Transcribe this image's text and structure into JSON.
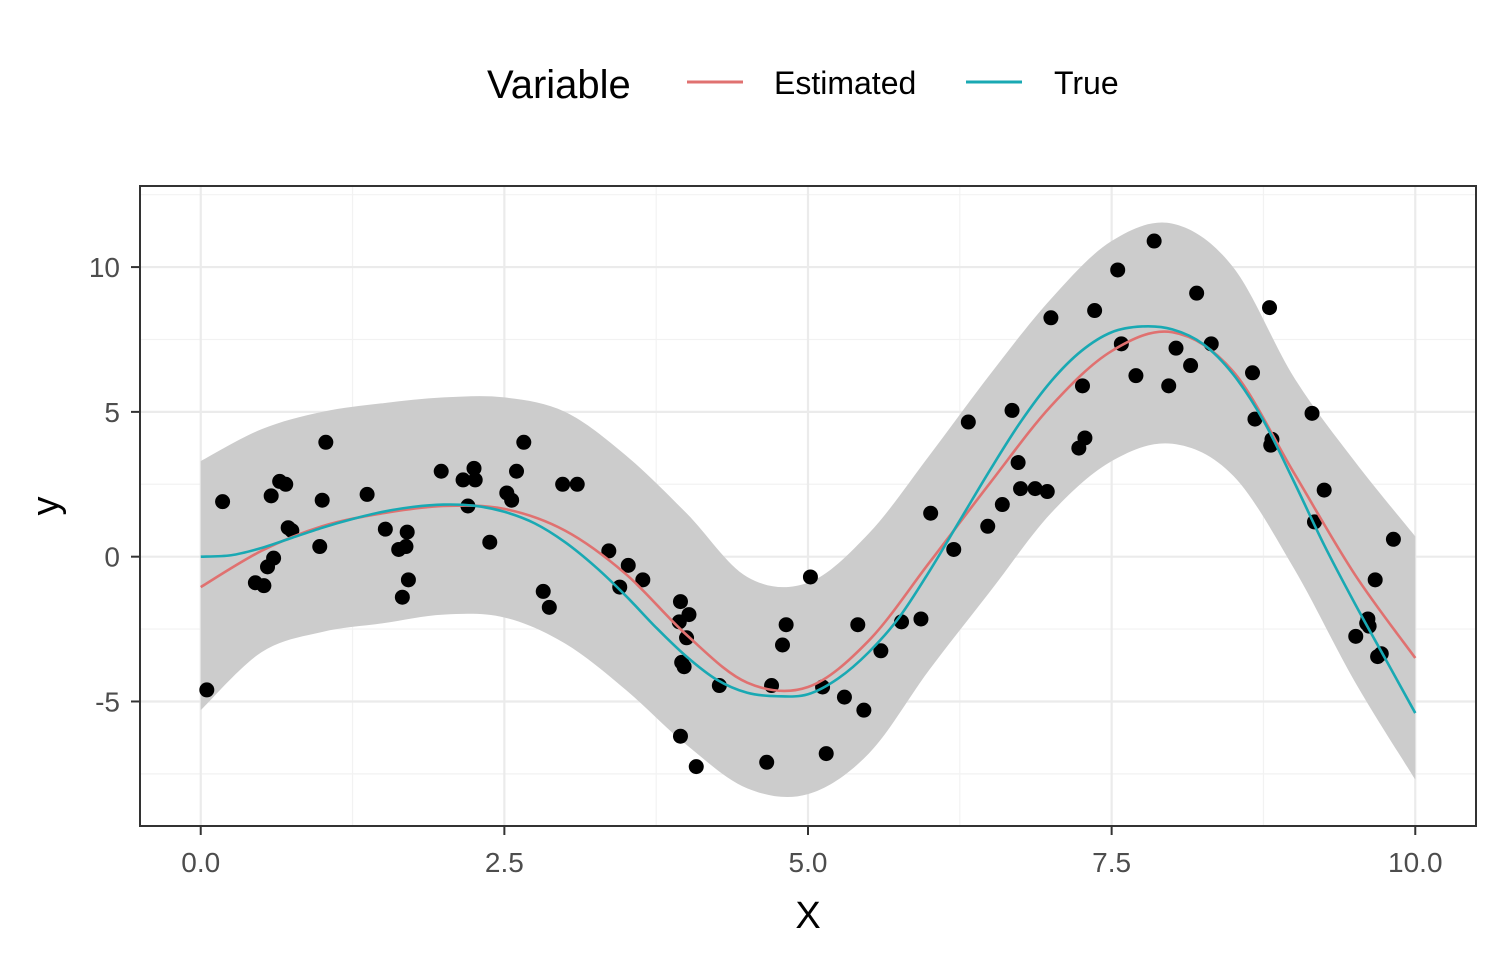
{
  "chart_data": {
    "type": "scatter",
    "xlabel": "X",
    "ylabel": "y",
    "xlim": [
      -0.5,
      10.5
    ],
    "ylim": [
      -9.3,
      12.8
    ],
    "x_ticks": [
      0,
      2.5,
      5,
      7.5,
      10
    ],
    "x_tick_labels": [
      "0.0",
      "2.5",
      "5.0",
      "7.5",
      "10.0"
    ],
    "y_ticks": [
      -5,
      0,
      5,
      10
    ],
    "y_tick_labels": [
      "-5",
      "0",
      "5",
      "10"
    ],
    "grid": true,
    "legend": {
      "title": "Variable",
      "position": "top",
      "entries": [
        {
          "label": "Estimated",
          "color": "#e07170"
        },
        {
          "label": "True",
          "color": "#19a9b3"
        }
      ]
    },
    "band_color": "#cccccc",
    "point_color": "#000000",
    "band": {
      "x": [
        0,
        0.5,
        1,
        1.5,
        2,
        2.5,
        3,
        3.5,
        4,
        4.5,
        5,
        5.5,
        6,
        6.5,
        7,
        7.5,
        8,
        8.5,
        9,
        9.5,
        10
      ],
      "lower": [
        -5.3,
        -3.3,
        -2.6,
        -2.3,
        -2.0,
        -2.1,
        -3.0,
        -4.6,
        -6.5,
        -8.0,
        -8.2,
        -6.8,
        -3.9,
        -1.2,
        1.5,
        3.3,
        3.9,
        2.8,
        -0.4,
        -4.3,
        -7.7
      ],
      "upper": [
        3.3,
        4.4,
        5.0,
        5.3,
        5.5,
        5.5,
        5.0,
        3.5,
        1.5,
        -0.7,
        -0.9,
        0.8,
        3.5,
        6.3,
        8.9,
        10.9,
        11.5,
        10.0,
        6.2,
        3.3,
        0.7
      ]
    },
    "series": [
      {
        "name": "Estimated",
        "x": [
          0,
          0.5,
          1,
          1.5,
          2,
          2.5,
          3,
          3.5,
          4,
          4.5,
          5,
          5.5,
          6,
          6.5,
          7,
          7.5,
          8,
          8.5,
          9,
          9.5,
          10
        ],
        "y": [
          -1.05,
          0.2,
          1.05,
          1.5,
          1.75,
          1.65,
          0.9,
          -0.6,
          -2.7,
          -4.35,
          -4.5,
          -2.9,
          -0.2,
          2.55,
          5.2,
          7.1,
          7.75,
          6.4,
          2.9,
          -0.6,
          -3.5
        ]
      },
      {
        "name": "True",
        "x": [
          0,
          0.25,
          0.5,
          0.75,
          1,
          1.25,
          1.5,
          1.75,
          2,
          2.25,
          2.5,
          2.75,
          3,
          3.25,
          3.5,
          3.75,
          4,
          4.25,
          4.5,
          4.75,
          5,
          5.25,
          5.5,
          5.75,
          6,
          6.25,
          6.5,
          6.75,
          7,
          7.25,
          7.5,
          7.75,
          8,
          8.25,
          8.5,
          8.75,
          9,
          9.25,
          9.5,
          9.75,
          10
        ],
        "y": [
          0.0,
          0.05,
          0.3,
          0.65,
          1.0,
          1.3,
          1.55,
          1.72,
          1.8,
          1.76,
          1.55,
          1.15,
          0.5,
          -0.35,
          -1.35,
          -2.45,
          -3.45,
          -4.25,
          -4.7,
          -4.82,
          -4.75,
          -4.2,
          -3.3,
          -2.1,
          -0.5,
          1.25,
          3.0,
          4.65,
          6.05,
          7.1,
          7.75,
          7.95,
          7.85,
          7.35,
          6.3,
          4.7,
          2.6,
          0.4,
          -1.6,
          -3.5,
          -5.4
        ]
      }
    ],
    "points": [
      [
        0.05,
        -4.6
      ],
      [
        0.18,
        1.9
      ],
      [
        0.45,
        -0.9
      ],
      [
        0.52,
        -1.0
      ],
      [
        0.55,
        -0.35
      ],
      [
        0.58,
        2.1
      ],
      [
        0.6,
        -0.05
      ],
      [
        0.65,
        2.6
      ],
      [
        0.7,
        2.5
      ],
      [
        0.72,
        1.0
      ],
      [
        0.75,
        0.9
      ],
      [
        0.98,
        0.35
      ],
      [
        1.0,
        1.95
      ],
      [
        1.03,
        3.95
      ],
      [
        1.37,
        2.15
      ],
      [
        1.52,
        0.95
      ],
      [
        1.63,
        0.25
      ],
      [
        1.66,
        -1.4
      ],
      [
        1.69,
        0.35
      ],
      [
        1.7,
        0.85
      ],
      [
        1.71,
        -0.8
      ],
      [
        1.98,
        2.95
      ],
      [
        2.16,
        2.65
      ],
      [
        2.2,
        1.75
      ],
      [
        2.25,
        3.05
      ],
      [
        2.26,
        2.65
      ],
      [
        2.38,
        0.5
      ],
      [
        2.52,
        2.2
      ],
      [
        2.56,
        1.95
      ],
      [
        2.6,
        2.95
      ],
      [
        2.66,
        3.95
      ],
      [
        2.82,
        -1.2
      ],
      [
        2.87,
        -1.75
      ],
      [
        2.98,
        2.5
      ],
      [
        3.1,
        2.5
      ],
      [
        3.36,
        0.2
      ],
      [
        3.45,
        -1.05
      ],
      [
        3.52,
        -0.3
      ],
      [
        3.64,
        -0.8
      ],
      [
        3.94,
        -2.25
      ],
      [
        3.95,
        -1.55
      ],
      [
        3.96,
        -3.65
      ],
      [
        3.98,
        -3.8
      ],
      [
        4.0,
        -2.8
      ],
      [
        4.02,
        -2.0
      ],
      [
        3.95,
        -6.2
      ],
      [
        4.08,
        -7.25
      ],
      [
        4.27,
        -4.45
      ],
      [
        4.66,
        -7.1
      ],
      [
        4.7,
        -4.45
      ],
      [
        4.79,
        -3.05
      ],
      [
        4.82,
        -2.35
      ],
      [
        5.02,
        -0.7
      ],
      [
        5.12,
        -4.5
      ],
      [
        5.15,
        -6.8
      ],
      [
        5.3,
        -4.85
      ],
      [
        5.41,
        -2.35
      ],
      [
        5.46,
        -5.3
      ],
      [
        5.6,
        -3.25
      ],
      [
        5.77,
        -2.25
      ],
      [
        5.93,
        -2.15
      ],
      [
        6.01,
        1.5
      ],
      [
        6.2,
        0.25
      ],
      [
        6.32,
        4.65
      ],
      [
        6.48,
        1.05
      ],
      [
        6.6,
        1.8
      ],
      [
        6.68,
        5.05
      ],
      [
        6.73,
        3.25
      ],
      [
        6.75,
        2.35
      ],
      [
        6.87,
        2.35
      ],
      [
        6.97,
        2.25
      ],
      [
        7.0,
        8.25
      ],
      [
        7.23,
        3.75
      ],
      [
        7.26,
        5.9
      ],
      [
        7.28,
        4.1
      ],
      [
        7.36,
        8.5
      ],
      [
        7.58,
        7.35
      ],
      [
        7.55,
        9.9
      ],
      [
        7.7,
        6.25
      ],
      [
        7.85,
        10.9
      ],
      [
        7.97,
        5.9
      ],
      [
        8.03,
        7.2
      ],
      [
        8.15,
        6.6
      ],
      [
        8.2,
        9.1
      ],
      [
        8.32,
        7.35
      ],
      [
        8.66,
        6.35
      ],
      [
        8.68,
        4.75
      ],
      [
        8.8,
        8.6
      ],
      [
        8.81,
        3.85
      ],
      [
        8.82,
        4.05
      ],
      [
        9.15,
        4.95
      ],
      [
        9.17,
        1.2
      ],
      [
        9.25,
        2.3
      ],
      [
        9.51,
        -2.75
      ],
      [
        9.6,
        -2.3
      ],
      [
        9.61,
        -2.15
      ],
      [
        9.62,
        -2.4
      ],
      [
        9.67,
        -0.8
      ],
      [
        9.69,
        -3.45
      ],
      [
        9.72,
        -3.35
      ],
      [
        9.82,
        0.6
      ]
    ]
  }
}
